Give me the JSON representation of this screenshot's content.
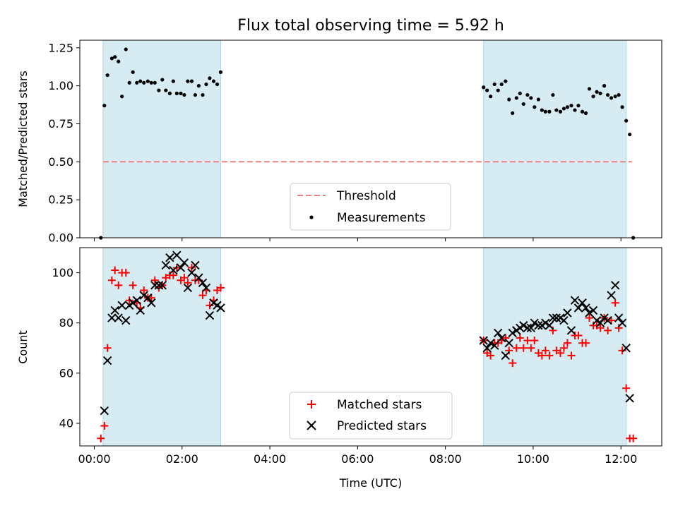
{
  "colors": {
    "shade": "#add8e6",
    "threshold": "#f08080",
    "matched": "#ff0000",
    "predicted": "#000000",
    "measurement": "#000000"
  },
  "chart_data": [
    {
      "type": "scatter",
      "title": "Flux total observing time = 5.92 h",
      "xlabel": "",
      "ylabel": "Matched/Predicted stars",
      "xlim": [
        -0.33,
        12.93
      ],
      "ylim": [
        0.0,
        1.3
      ],
      "yticks": [
        0.0,
        0.25,
        0.5,
        0.75,
        1.0,
        1.25
      ],
      "ytick_labels": [
        "0.00",
        "0.25",
        "0.50",
        "0.75",
        "1.00",
        "1.25"
      ],
      "xticks": [
        0,
        2,
        4,
        6,
        8,
        10,
        12
      ],
      "legend_position": "lower-center",
      "shaded_spans": [
        [
          0.2,
          2.88
        ],
        [
          8.87,
          12.12
        ]
      ],
      "threshold": {
        "name": "Threshold",
        "y": 0.5,
        "x": [
          0.2,
          12.25
        ]
      },
      "series": [
        {
          "name": "Measurements",
          "points": [
            [
              0.15,
              0.0
            ],
            [
              0.23,
              0.87
            ],
            [
              0.3,
              1.07
            ],
            [
              0.4,
              1.18
            ],
            [
              0.47,
              1.19
            ],
            [
              0.55,
              1.16
            ],
            [
              0.63,
              0.93
            ],
            [
              0.72,
              1.24
            ],
            [
              0.8,
              1.02
            ],
            [
              0.88,
              1.09
            ],
            [
              0.97,
              1.02
            ],
            [
              1.05,
              1.03
            ],
            [
              1.13,
              1.02
            ],
            [
              1.22,
              1.03
            ],
            [
              1.3,
              1.02
            ],
            [
              1.38,
              1.02
            ],
            [
              1.47,
              0.97
            ],
            [
              1.55,
              1.04
            ],
            [
              1.63,
              0.97
            ],
            [
              1.72,
              0.95
            ],
            [
              1.8,
              1.03
            ],
            [
              1.88,
              0.95
            ],
            [
              1.97,
              0.95
            ],
            [
              2.05,
              0.94
            ],
            [
              2.13,
              1.03
            ],
            [
              2.22,
              1.03
            ],
            [
              2.3,
              0.94
            ],
            [
              2.38,
              1.0
            ],
            [
              2.47,
              0.94
            ],
            [
              2.55,
              1.01
            ],
            [
              2.63,
              1.05
            ],
            [
              2.72,
              1.03
            ],
            [
              2.8,
              1.01
            ],
            [
              2.88,
              1.09
            ],
            [
              8.87,
              0.99
            ],
            [
              8.95,
              0.97
            ],
            [
              9.03,
              0.93
            ],
            [
              9.12,
              1.01
            ],
            [
              9.2,
              0.97
            ],
            [
              9.28,
              1.01
            ],
            [
              9.37,
              1.03
            ],
            [
              9.45,
              0.91
            ],
            [
              9.53,
              0.82
            ],
            [
              9.62,
              0.92
            ],
            [
              9.7,
              0.95
            ],
            [
              9.78,
              0.88
            ],
            [
              9.87,
              0.94
            ],
            [
              9.95,
              0.92
            ],
            [
              10.03,
              0.86
            ],
            [
              10.12,
              0.91
            ],
            [
              10.2,
              0.84
            ],
            [
              10.28,
              0.83
            ],
            [
              10.37,
              0.83
            ],
            [
              10.45,
              0.94
            ],
            [
              10.53,
              0.84
            ],
            [
              10.62,
              0.83
            ],
            [
              10.7,
              0.85
            ],
            [
              10.78,
              0.86
            ],
            [
              10.87,
              0.87
            ],
            [
              10.95,
              0.84
            ],
            [
              11.03,
              0.87
            ],
            [
              11.12,
              0.83
            ],
            [
              11.2,
              0.82
            ],
            [
              11.28,
              0.98
            ],
            [
              11.37,
              0.93
            ],
            [
              11.45,
              0.96
            ],
            [
              11.53,
              0.95
            ],
            [
              11.62,
              1.0
            ],
            [
              11.7,
              0.94
            ],
            [
              11.78,
              0.92
            ],
            [
              11.87,
              0.93
            ],
            [
              11.95,
              0.94
            ],
            [
              12.03,
              0.86
            ],
            [
              12.12,
              0.77
            ],
            [
              12.2,
              0.68
            ],
            [
              12.28,
              0.0
            ]
          ]
        }
      ]
    },
    {
      "type": "scatter",
      "title": "",
      "xlabel": "Time (UTC)",
      "ylabel": "Count",
      "xlim": [
        -0.33,
        12.93
      ],
      "ylim": [
        31,
        110
      ],
      "yticks": [
        40,
        60,
        80,
        100
      ],
      "ytick_labels": [
        "40",
        "60",
        "80",
        "100"
      ],
      "xticks": [
        0,
        2,
        4,
        6,
        8,
        10,
        12
      ],
      "xtick_labels": [
        "00:00",
        "02:00",
        "04:00",
        "06:00",
        "08:00",
        "10:00",
        "12:00"
      ],
      "legend_position": "lower-center",
      "shaded_spans": [
        [
          0.2,
          2.88
        ],
        [
          8.87,
          12.12
        ]
      ],
      "series": [
        {
          "name": "Matched stars",
          "marker": "plus",
          "points": [
            [
              0.15,
              34
            ],
            [
              0.23,
              39
            ],
            [
              0.3,
              70
            ],
            [
              0.4,
              97
            ],
            [
              0.47,
              101
            ],
            [
              0.55,
              95
            ],
            [
              0.63,
              100
            ],
            [
              0.72,
              100
            ],
            [
              0.8,
              89
            ],
            [
              0.88,
              95
            ],
            [
              0.97,
              88
            ],
            [
              1.05,
              86
            ],
            [
              1.13,
              93
            ],
            [
              1.22,
              90
            ],
            [
              1.3,
              90
            ],
            [
              1.38,
              97
            ],
            [
              1.47,
              94
            ],
            [
              1.55,
              95
            ],
            [
              1.63,
              98
            ],
            [
              1.72,
              99
            ],
            [
              1.8,
              99
            ],
            [
              1.88,
              102
            ],
            [
              1.97,
              97
            ],
            [
              2.05,
              98
            ],
            [
              2.13,
              96
            ],
            [
              2.22,
              102
            ],
            [
              2.3,
              97
            ],
            [
              2.38,
              97
            ],
            [
              2.47,
              91
            ],
            [
              2.55,
              93
            ],
            [
              2.63,
              87
            ],
            [
              2.72,
              89
            ],
            [
              2.8,
              93
            ],
            [
              2.88,
              94
            ],
            [
              8.87,
              73
            ],
            [
              8.95,
              68
            ],
            [
              9.03,
              67
            ],
            [
              9.12,
              72
            ],
            [
              9.2,
              72
            ],
            [
              9.28,
              73
            ],
            [
              9.37,
              74
            ],
            [
              9.45,
              69
            ],
            [
              9.53,
              64
            ],
            [
              9.62,
              70
            ],
            [
              9.7,
              74
            ],
            [
              9.78,
              70
            ],
            [
              9.87,
              73
            ],
            [
              9.95,
              70
            ],
            [
              10.03,
              73
            ],
            [
              10.12,
              68
            ],
            [
              10.2,
              67
            ],
            [
              10.28,
              69
            ],
            [
              10.37,
              67
            ],
            [
              10.45,
              77
            ],
            [
              10.53,
              69
            ],
            [
              10.62,
              68
            ],
            [
              10.7,
              70
            ],
            [
              10.78,
              72
            ],
            [
              10.87,
              67
            ],
            [
              10.95,
              75
            ],
            [
              11.03,
              75
            ],
            [
              11.12,
              72
            ],
            [
              11.2,
              72
            ],
            [
              11.28,
              82
            ],
            [
              11.37,
              79
            ],
            [
              11.45,
              79
            ],
            [
              11.53,
              78
            ],
            [
              11.62,
              82
            ],
            [
              11.7,
              77
            ],
            [
              11.78,
              81
            ],
            [
              11.87,
              88
            ],
            [
              11.95,
              78
            ],
            [
              12.03,
              69
            ],
            [
              12.12,
              54
            ],
            [
              12.2,
              34
            ],
            [
              12.28,
              34
            ]
          ]
        },
        {
          "name": "Predicted stars",
          "marker": "x",
          "points": [
            [
              0.23,
              45
            ],
            [
              0.3,
              65
            ],
            [
              0.4,
              82
            ],
            [
              0.47,
              85
            ],
            [
              0.55,
              82
            ],
            [
              0.63,
              87
            ],
            [
              0.72,
              81
            ],
            [
              0.8,
              87
            ],
            [
              0.88,
              88
            ],
            [
              0.97,
              89
            ],
            [
              1.05,
              85
            ],
            [
              1.13,
              91
            ],
            [
              1.22,
              90
            ],
            [
              1.3,
              88
            ],
            [
              1.38,
              95
            ],
            [
              1.47,
              95
            ],
            [
              1.55,
              95
            ],
            [
              1.63,
              103
            ],
            [
              1.72,
              106
            ],
            [
              1.8,
              101
            ],
            [
              1.88,
              107
            ],
            [
              1.97,
              102
            ],
            [
              2.05,
              104
            ],
            [
              2.13,
              94
            ],
            [
              2.22,
              100
            ],
            [
              2.3,
              103
            ],
            [
              2.38,
              98
            ],
            [
              2.47,
              96
            ],
            [
              2.55,
              94
            ],
            [
              2.63,
              83
            ],
            [
              2.72,
              88
            ],
            [
              2.8,
              87
            ],
            [
              2.88,
              86
            ],
            [
              8.87,
              73
            ],
            [
              8.95,
              70
            ],
            [
              9.03,
              72
            ],
            [
              9.12,
              71
            ],
            [
              9.2,
              76
            ],
            [
              9.28,
              74
            ],
            [
              9.37,
              67
            ],
            [
              9.45,
              72
            ],
            [
              9.53,
              76
            ],
            [
              9.62,
              77
            ],
            [
              9.7,
              78
            ],
            [
              9.78,
              79
            ],
            [
              9.87,
              78
            ],
            [
              9.95,
              78
            ],
            [
              10.03,
              80
            ],
            [
              10.12,
              79
            ],
            [
              10.2,
              79
            ],
            [
              10.28,
              80
            ],
            [
              10.37,
              79
            ],
            [
              10.45,
              82
            ],
            [
              10.53,
              82
            ],
            [
              10.62,
              82
            ],
            [
              10.7,
              81
            ],
            [
              10.78,
              84
            ],
            [
              10.87,
              77
            ],
            [
              10.95,
              89
            ],
            [
              11.03,
              86
            ],
            [
              11.12,
              88
            ],
            [
              11.2,
              86
            ],
            [
              11.28,
              84
            ],
            [
              11.37,
              85
            ],
            [
              11.45,
              81
            ],
            [
              11.53,
              80
            ],
            [
              11.62,
              82
            ],
            [
              11.7,
              81
            ],
            [
              11.78,
              91
            ],
            [
              11.87,
              95
            ],
            [
              11.95,
              82
            ],
            [
              12.03,
              80
            ],
            [
              12.12,
              70
            ],
            [
              12.2,
              50
            ]
          ]
        }
      ]
    }
  ]
}
